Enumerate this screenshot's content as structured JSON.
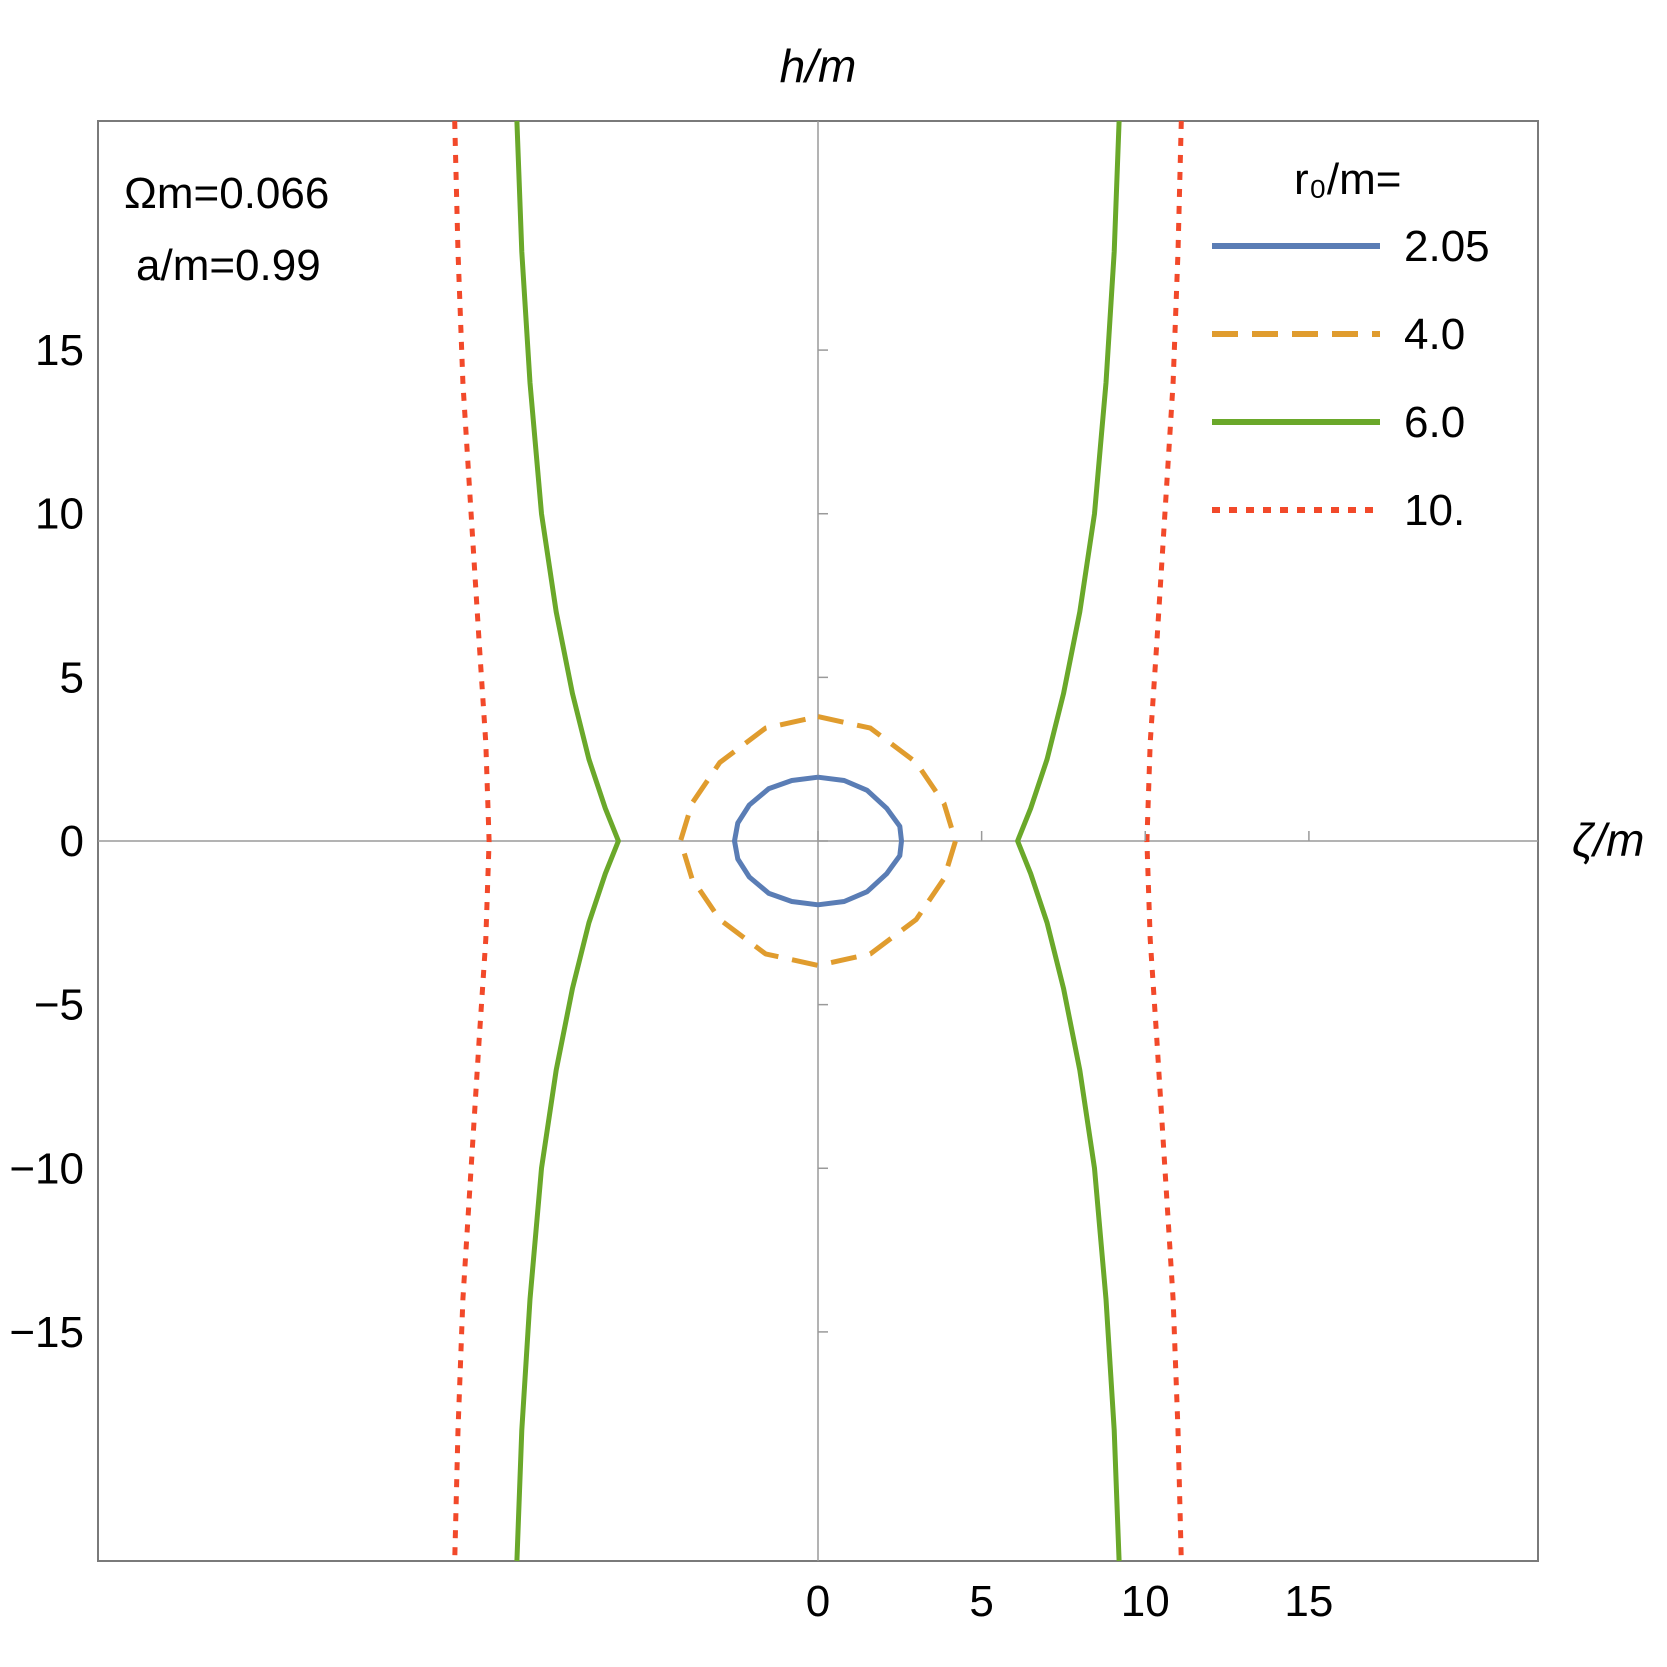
{
  "chart_data": {
    "type": "line",
    "xlabel": "ζ/m",
    "ylabel": "h/m",
    "xlim": [
      -22,
      22
    ],
    "ylim": [
      -22,
      22
    ],
    "x_ticks": [
      0,
      5,
      10,
      15
    ],
    "x_tick_labels": [
      "0",
      "5",
      "10",
      "15"
    ],
    "y_ticks": [
      15,
      10,
      5,
      0,
      -5,
      -10,
      -15
    ],
    "y_tick_labels": [
      "15",
      "10",
      "5",
      "0",
      "−5",
      "−10",
      "−15"
    ],
    "grid": false,
    "annotations": [
      "Ωm=0.066",
      "a/m=0.99"
    ],
    "legend": {
      "title": "r₀/m=",
      "placement": "top-right"
    },
    "series": [
      {
        "name": "2.05",
        "color": "#5a7db5",
        "dash": "solid",
        "segments": [
          [
            [
              0,
              1.95
            ],
            [
              0.8,
              1.85
            ],
            [
              1.5,
              1.55
            ],
            [
              2.1,
              1.0
            ],
            [
              2.5,
              0.45
            ],
            [
              2.55,
              0
            ],
            [
              2.5,
              -0.45
            ],
            [
              2.1,
              -1.0
            ],
            [
              1.5,
              -1.55
            ],
            [
              0.8,
              -1.85
            ],
            [
              0,
              -1.95
            ],
            [
              -0.8,
              -1.85
            ],
            [
              -1.5,
              -1.6
            ],
            [
              -2.1,
              -1.1
            ],
            [
              -2.45,
              -0.55
            ],
            [
              -2.55,
              0
            ],
            [
              -2.45,
              0.55
            ],
            [
              -2.1,
              1.1
            ],
            [
              -1.5,
              1.6
            ],
            [
              -0.8,
              1.85
            ],
            [
              0,
              1.95
            ]
          ]
        ]
      },
      {
        "name": "4.0",
        "color": "#e09c2e",
        "dash": "dashed",
        "segments": [
          [
            [
              0,
              3.8
            ],
            [
              1.6,
              3.45
            ],
            [
              3.0,
              2.4
            ],
            [
              3.85,
              1.15
            ],
            [
              4.2,
              0
            ],
            [
              3.85,
              -1.15
            ],
            [
              3.0,
              -2.4
            ],
            [
              1.6,
              -3.45
            ],
            [
              0,
              -3.8
            ],
            [
              -1.6,
              -3.45
            ],
            [
              -3.0,
              -2.4
            ],
            [
              -3.85,
              -1.15
            ],
            [
              -4.2,
              0
            ],
            [
              -3.85,
              1.15
            ],
            [
              -3.0,
              2.4
            ],
            [
              -1.6,
              3.45
            ],
            [
              0,
              3.8
            ]
          ]
        ]
      },
      {
        "name": "6.0",
        "color": "#6aa82a",
        "dash": "solid",
        "segments": [
          [
            [
              9.2,
              22
            ],
            [
              9.05,
              18
            ],
            [
              8.8,
              14
            ],
            [
              8.45,
              10
            ],
            [
              8.0,
              7
            ],
            [
              7.5,
              4.5
            ],
            [
              7.0,
              2.5
            ],
            [
              6.5,
              1.0
            ],
            [
              6.1,
              0
            ],
            [
              6.5,
              -1.0
            ],
            [
              7.0,
              -2.5
            ],
            [
              7.5,
              -4.5
            ],
            [
              8.0,
              -7
            ],
            [
              8.45,
              -10
            ],
            [
              8.8,
              -14
            ],
            [
              9.05,
              -18
            ],
            [
              9.2,
              -22
            ]
          ],
          [
            [
              -9.2,
              22
            ],
            [
              -9.05,
              18
            ],
            [
              -8.8,
              14
            ],
            [
              -8.45,
              10
            ],
            [
              -8.0,
              7
            ],
            [
              -7.5,
              4.5
            ],
            [
              -7.0,
              2.5
            ],
            [
              -6.5,
              1.0
            ],
            [
              -6.1,
              0
            ],
            [
              -6.5,
              -1.0
            ],
            [
              -7.0,
              -2.5
            ],
            [
              -7.5,
              -4.5
            ],
            [
              -8.0,
              -7
            ],
            [
              -8.45,
              -10
            ],
            [
              -8.8,
              -14
            ],
            [
              -9.05,
              -18
            ],
            [
              -9.2,
              -22
            ]
          ]
        ]
      },
      {
        "name": "10.",
        "color": "#f2492a",
        "dash": "dotted",
        "segments": [
          [
            [
              11.1,
              22
            ],
            [
              11.0,
              18
            ],
            [
              10.85,
              14
            ],
            [
              10.6,
              10
            ],
            [
              10.35,
              6
            ],
            [
              10.15,
              3
            ],
            [
              10.05,
              0
            ],
            [
              10.15,
              -3
            ],
            [
              10.35,
              -6
            ],
            [
              10.6,
              -10
            ],
            [
              10.85,
              -14
            ],
            [
              11.0,
              -18
            ],
            [
              11.1,
              -22
            ]
          ],
          [
            [
              -11.1,
              22
            ],
            [
              -11.0,
              18
            ],
            [
              -10.85,
              14
            ],
            [
              -10.6,
              10
            ],
            [
              -10.35,
              6
            ],
            [
              -10.15,
              3
            ],
            [
              -10.05,
              0
            ],
            [
              -10.15,
              -3
            ],
            [
              -10.35,
              -6
            ],
            [
              -10.6,
              -10
            ],
            [
              -10.85,
              -14
            ],
            [
              -11.0,
              -18
            ],
            [
              -11.1,
              -22
            ]
          ]
        ]
      }
    ]
  }
}
